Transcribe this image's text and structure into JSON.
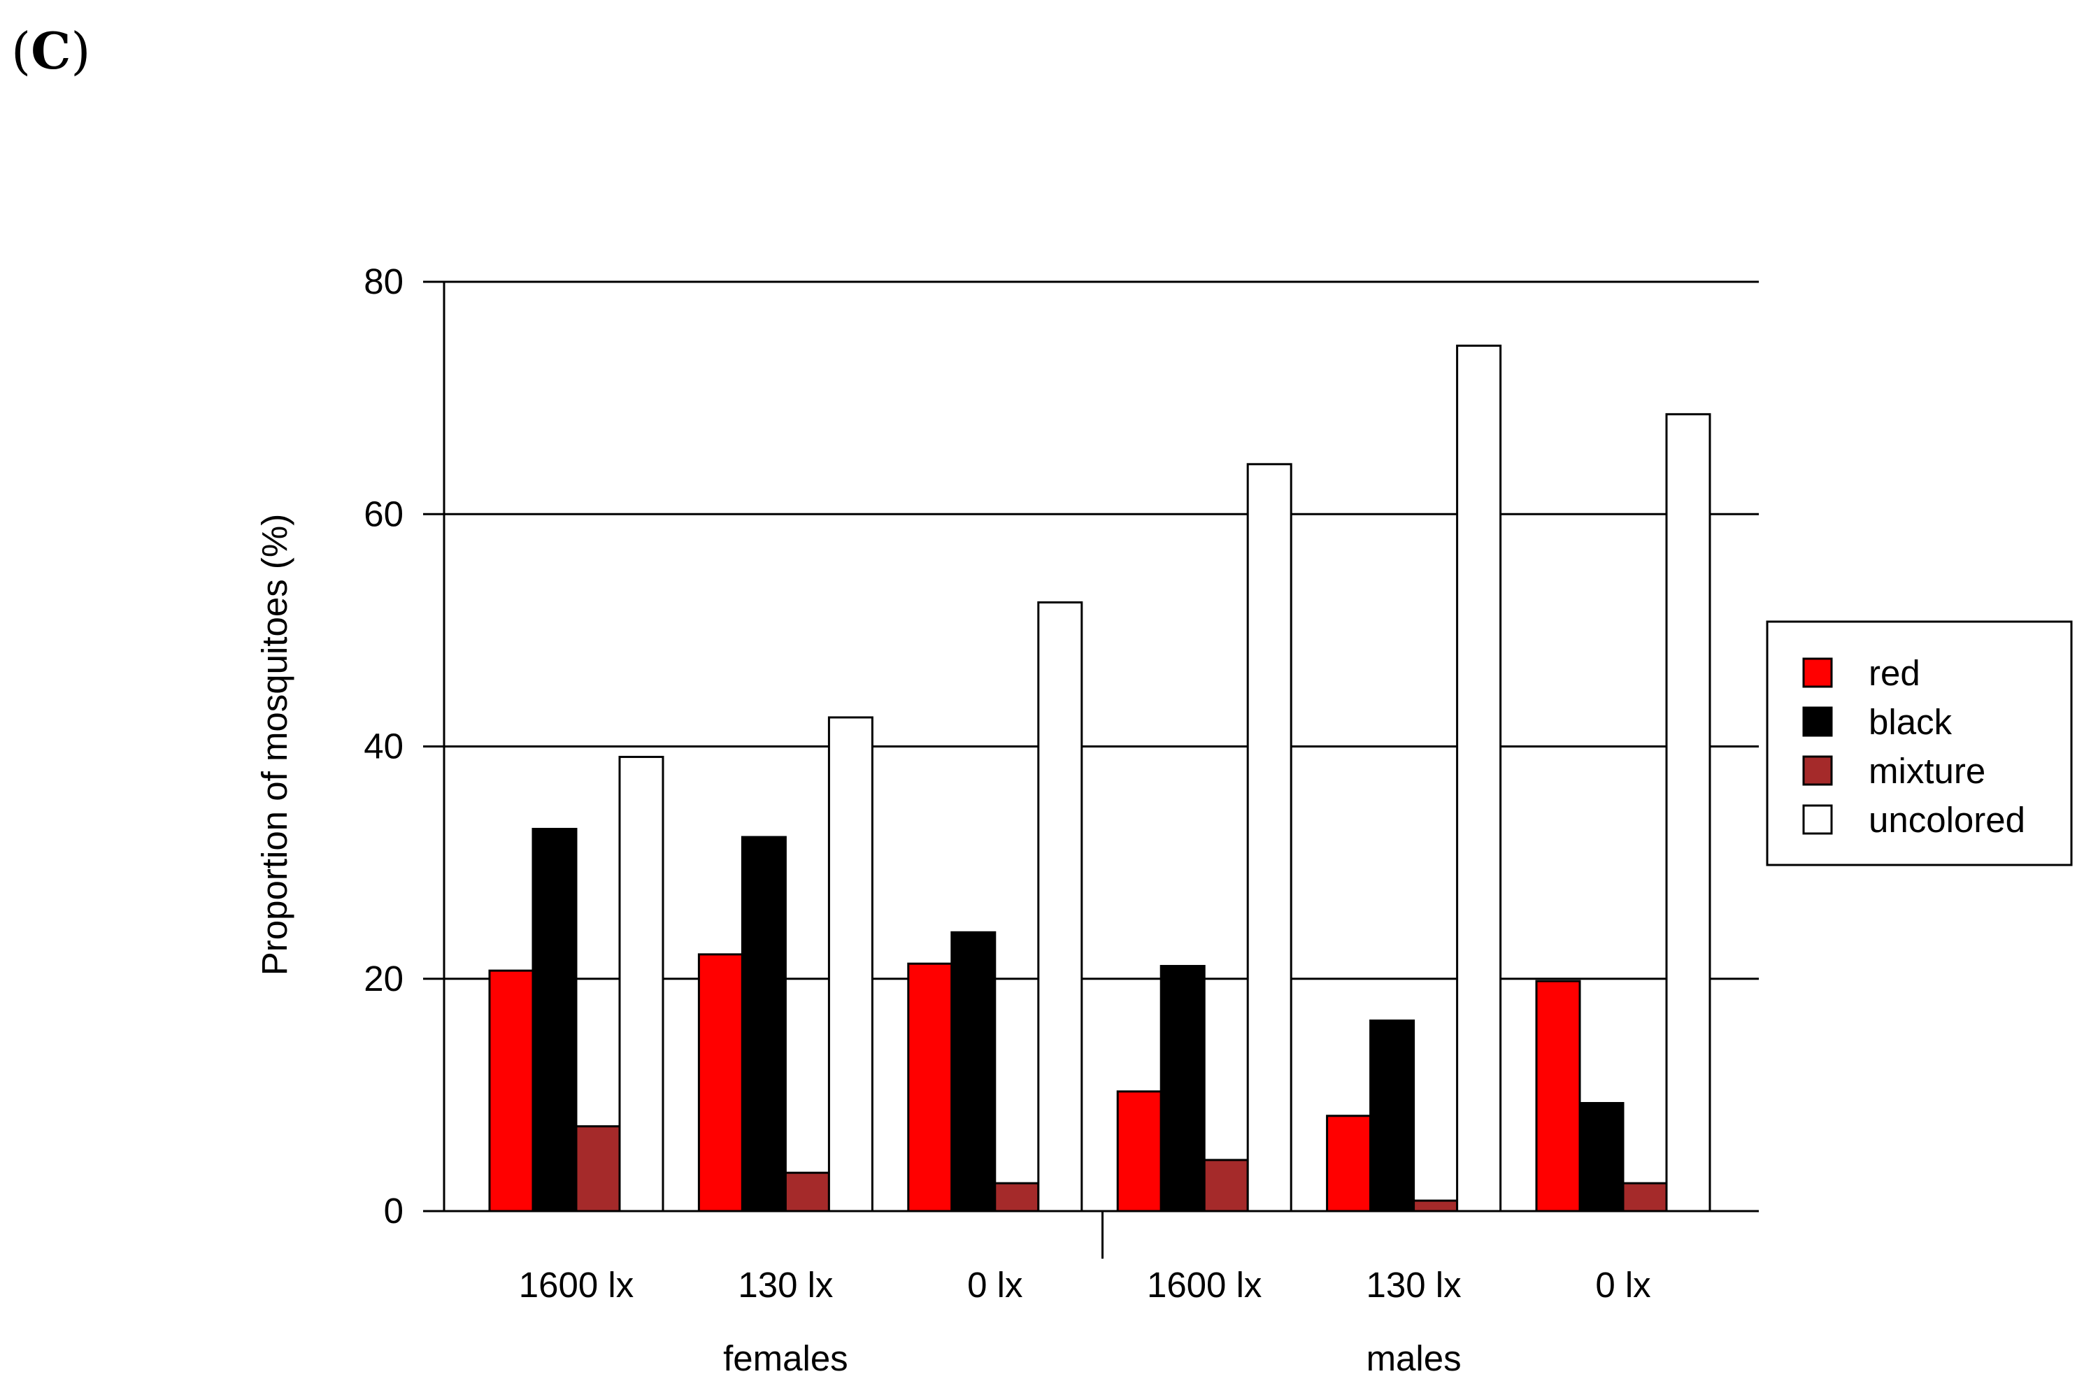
{
  "panel_label": {
    "open": "(",
    "letter": "C",
    "close": ")"
  },
  "chart_data": {
    "type": "bar",
    "title": "",
    "ylabel": "Proportion of mosquitoes (%)",
    "xlabel": "",
    "ylim": [
      0,
      80
    ],
    "yticks": [
      0,
      20,
      40,
      60,
      80
    ],
    "grid": "horizontal",
    "legend_position": "right",
    "categories": [
      "1600 lx",
      "130 lx",
      "0 lx",
      "1600 lx",
      "130 lx",
      "0 lx"
    ],
    "groups": [
      {
        "label": "females",
        "categories": [
          0,
          1,
          2
        ]
      },
      {
        "label": "males",
        "categories": [
          3,
          4,
          5
        ]
      }
    ],
    "series": [
      {
        "name": "red",
        "color": "#ff0000",
        "values": [
          20.7,
          22.1,
          21.3,
          10.3,
          8.2,
          19.8
        ]
      },
      {
        "name": "black",
        "color": "#000000",
        "values": [
          32.9,
          32.2,
          24.0,
          21.1,
          16.4,
          9.3
        ]
      },
      {
        "name": "mixture",
        "color": "#a52a2a",
        "values": [
          7.3,
          3.3,
          2.4,
          4.4,
          0.9,
          2.4
        ]
      },
      {
        "name": "uncolored",
        "color": "#ffffff",
        "values": [
          39.1,
          42.5,
          52.4,
          64.3,
          74.5,
          68.6
        ]
      }
    ]
  }
}
